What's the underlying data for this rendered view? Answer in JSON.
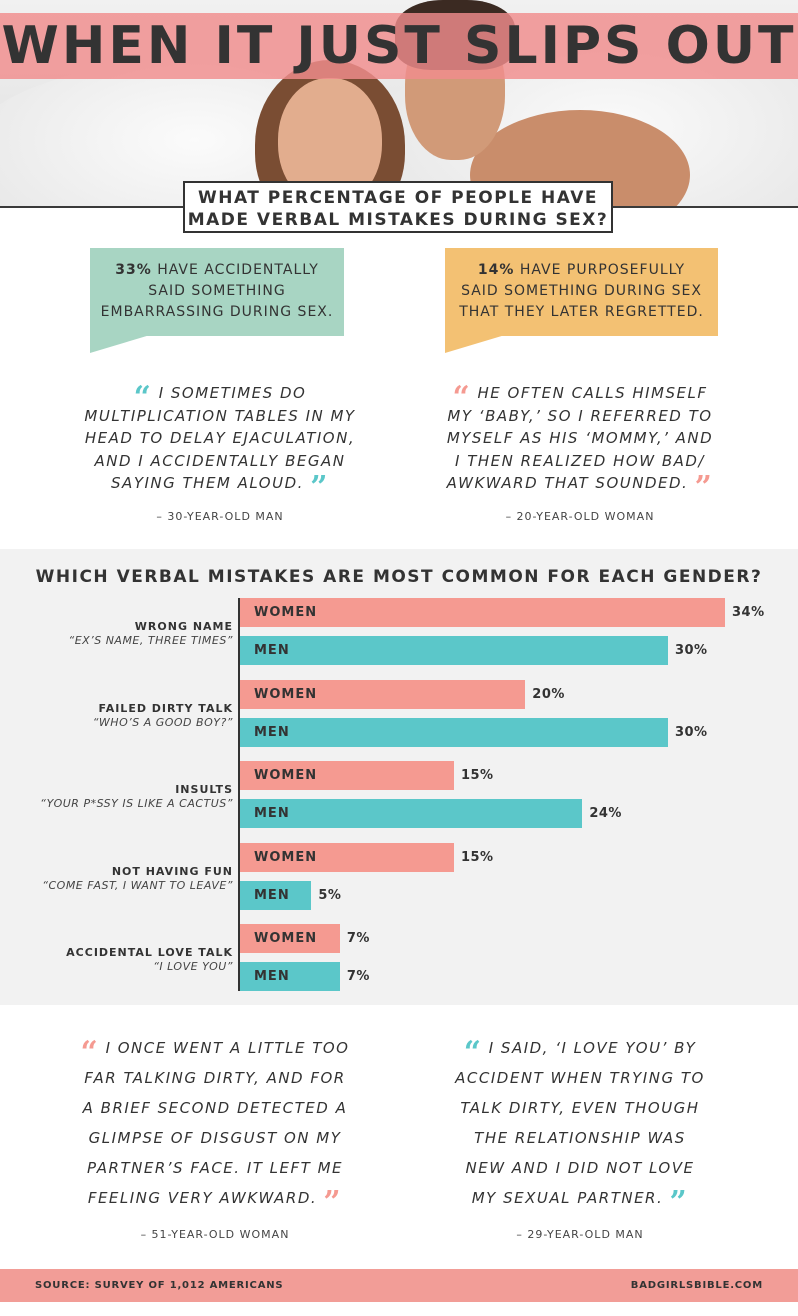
{
  "header": {
    "title": "WHEN IT JUST SLIPS OUT",
    "question_line1": "WHAT PERCENTAGE OF PEOPLE HAVE",
    "question_line2": "MADE VERBAL MISTAKES DURING SEX?"
  },
  "stats": [
    {
      "pct": "33%",
      "line1": " HAVE ACCIDENTALLY",
      "line2": "SAID SOMETHING",
      "line3": "EMBARRASSING DURING SEX.",
      "color": "#a8d5c3"
    },
    {
      "pct": "14%",
      "line1": " HAVE PURPOSEFULLY",
      "line2": "SAID SOMETHING DURING SEX",
      "line3": "THAT THEY LATER REGRETTED.",
      "color": "#f3c173"
    }
  ],
  "quotes_top": [
    {
      "lines": [
        "I SOMETIMES DO",
        "MULTIPLICATION TABLES IN MY",
        "HEAD TO DELAY EJACULATION,",
        "AND I ACCIDENTALLY BEGAN",
        "SAYING THEM ALOUD."
      ],
      "attribution": "– 30-YEAR-OLD MAN",
      "mark_color": "#5bc7c9"
    },
    {
      "lines": [
        "HE OFTEN CALLS HIMSELF",
        "MY ‘BABY,’ SO I REFERRED TO",
        "MYSELF AS HIS ‘MOMMY,’ AND",
        "I THEN REALIZED HOW BAD/",
        "AWKWARD THAT SOUNDED."
      ],
      "attribution": "– 20-YEAR-OLD WOMAN",
      "mark_color": "#f59a91"
    }
  ],
  "chart_data": {
    "type": "bar",
    "orientation": "horizontal",
    "title": "WHICH VERBAL MISTAKES ARE MOST COMMON FOR EACH GENDER?",
    "categories": [
      "WRONG NAME",
      "FAILED DIRTY TALK",
      "INSULTS",
      "NOT HAVING FUN",
      "ACCIDENTAL LOVE TALK"
    ],
    "category_quotes": [
      "“EX’S NAME, THREE TIMES”",
      "“WHO’S A GOOD BOY?”",
      "“YOUR P*SSY IS LIKE A CACTUS”",
      "“COME FAST, I WANT TO LEAVE”",
      "“I LOVE YOU”"
    ],
    "series": [
      {
        "name": "WOMEN",
        "values": [
          34,
          20,
          15,
          15,
          7
        ],
        "color": "#f59a91"
      },
      {
        "name": "MEN",
        "values": [
          30,
          30,
          24,
          5,
          7
        ],
        "color": "#5bc7c9"
      }
    ],
    "value_suffix": "%",
    "xlim": [
      0,
      34
    ],
    "grid": false,
    "legend": "none"
  },
  "quotes_bottom": [
    {
      "lines": [
        "I ONCE WENT A LITTLE TOO",
        "FAR TALKING DIRTY, AND FOR",
        "A BRIEF SECOND DETECTED A",
        "GLIMPSE OF DISGUST ON MY",
        "PARTNER’S FACE. IT LEFT ME",
        "FEELING VERY AWKWARD."
      ],
      "attribution": "– 51-YEAR-OLD WOMAN",
      "mark_color": "#f59a91"
    },
    {
      "lines": [
        "I SAID, ‘I LOVE YOU’ BY",
        "ACCIDENT WHEN TRYING TO",
        "TALK DIRTY, EVEN THOUGH",
        "THE RELATIONSHIP WAS",
        "NEW AND I DID NOT LOVE",
        "MY SEXUAL PARTNER."
      ],
      "attribution": "– 29-YEAR-OLD MAN",
      "mark_color": "#5bc7c9"
    }
  ],
  "footer": {
    "source": "SOURCE: SURVEY OF 1,012 AMERICANS",
    "site": "BADGIRLSBIBLE.COM"
  }
}
